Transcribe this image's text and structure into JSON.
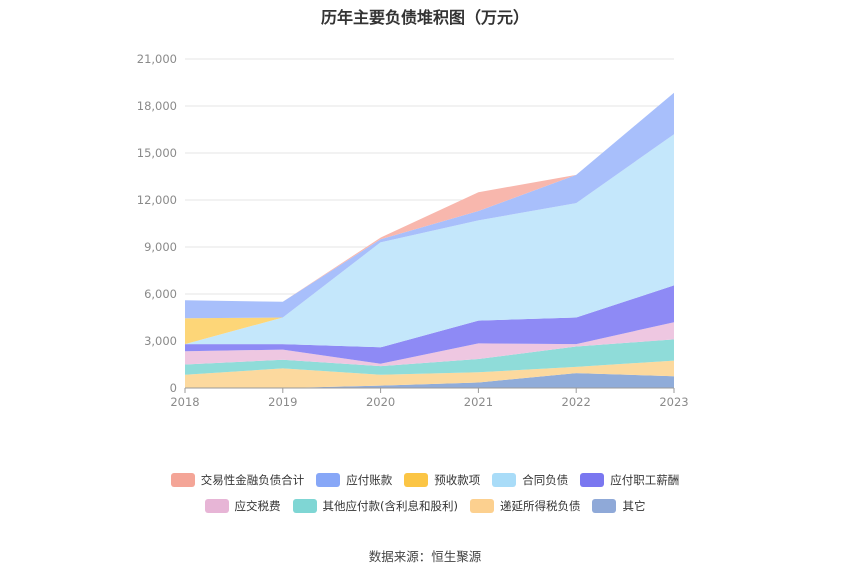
{
  "title": "历年主要负债堆积图（万元）",
  "source": "数据来源：恒生聚源",
  "chart_data": {
    "type": "area",
    "stacked": true,
    "title": "历年主要负债堆积图（万元）",
    "xlabel": "",
    "ylabel": "",
    "categories": [
      "2018",
      "2019",
      "2020",
      "2021",
      "2022",
      "2023"
    ],
    "ylim": [
      0,
      21000
    ],
    "yticks": [
      0,
      3000,
      6000,
      9000,
      12000,
      15000,
      18000,
      21000
    ],
    "ytick_labels": [
      "0",
      "3,000",
      "6,000",
      "9,000",
      "12,000",
      "15,000",
      "18,000",
      "21,000"
    ],
    "grid": true,
    "legend_position": "bottom",
    "series": [
      {
        "name": "其它",
        "color": "#90acd9",
        "values": [
          0,
          0,
          150,
          350,
          950,
          750
        ]
      },
      {
        "name": "递延所得税负债",
        "color": "#fcd99e",
        "values": [
          850,
          1250,
          700,
          650,
          400,
          1000
        ]
      },
      {
        "name": "其他应付款(含利息和股利)",
        "color": "#8fdcd9",
        "values": [
          650,
          550,
          550,
          850,
          1300,
          1350
        ]
      },
      {
        "name": "应交税费",
        "color": "#eec7e1",
        "values": [
          850,
          650,
          150,
          1000,
          150,
          1100
        ]
      },
      {
        "name": "应付职工薪酬",
        "color": "#8e8af5",
        "values": [
          450,
          350,
          1050,
          1450,
          1700,
          2350
        ]
      },
      {
        "name": "合同负债",
        "color": "#c4e7fb",
        "values": [
          0,
          1700,
          6700,
          6400,
          7300,
          9650
        ]
      },
      {
        "name": "预收款项",
        "color": "#fdd678",
        "values": [
          1650,
          0,
          0,
          0,
          0,
          0
        ]
      },
      {
        "name": "应付账款",
        "color": "#a8bffb",
        "values": [
          1150,
          1000,
          200,
          600,
          1800,
          2650
        ]
      },
      {
        "name": "交易性金融负债合计",
        "color": "#f8b7ad",
        "values": [
          0,
          0,
          100,
          1200,
          0,
          0
        ]
      }
    ]
  },
  "legend": {
    "row1": [
      {
        "name": "交易性金融负债合计",
        "color": "#f4a597"
      },
      {
        "name": "应付账款",
        "color": "#87a7f7"
      },
      {
        "name": "预收款项",
        "color": "#fbc545"
      },
      {
        "name": "合同负债",
        "color": "#a9dcf8"
      },
      {
        "name": "应付职工薪酬",
        "color": "#7a77f0"
      }
    ],
    "row2": [
      {
        "name": "应交税费",
        "color": "#e7b5d6"
      },
      {
        "name": "其他应付款(含利息和股利)",
        "color": "#7fd6d4"
      },
      {
        "name": "递延所得税负债",
        "color": "#fcd08f"
      },
      {
        "name": "其它",
        "color": "#8fa9d8"
      }
    ]
  }
}
